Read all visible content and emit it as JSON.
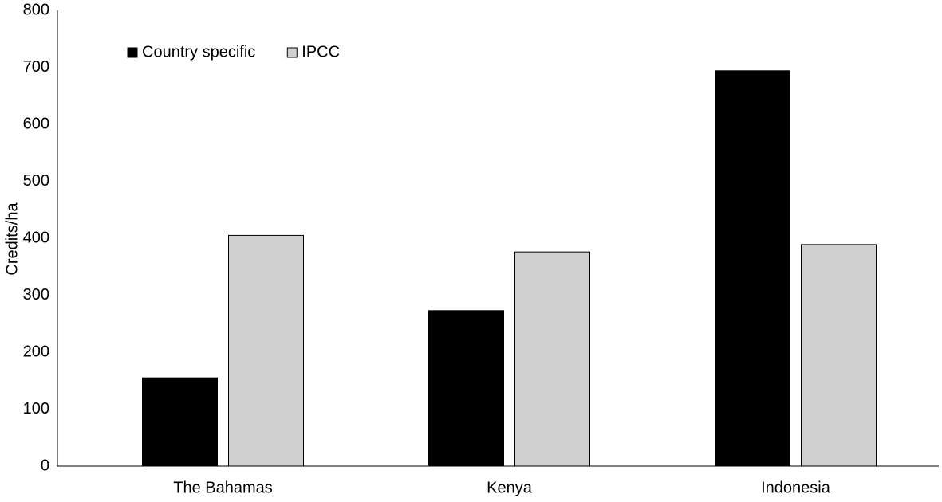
{
  "chart_data": {
    "type": "bar",
    "y_label": "Credits/ha",
    "categories": [
      "The Bahamas",
      "Kenya",
      "Indonesia"
    ],
    "series": [
      {
        "name": "Country specific",
        "color": "#000000",
        "values": [
          155,
          273,
          694
        ]
      },
      {
        "name": "IPCC",
        "color": "#d0d0d0",
        "values": [
          405,
          376,
          389
        ]
      }
    ],
    "ylim": [
      0,
      800
    ],
    "yticks": [
      0,
      100,
      200,
      300,
      400,
      500,
      600,
      700,
      800
    ],
    "grid": false,
    "legend": "upper-left"
  }
}
